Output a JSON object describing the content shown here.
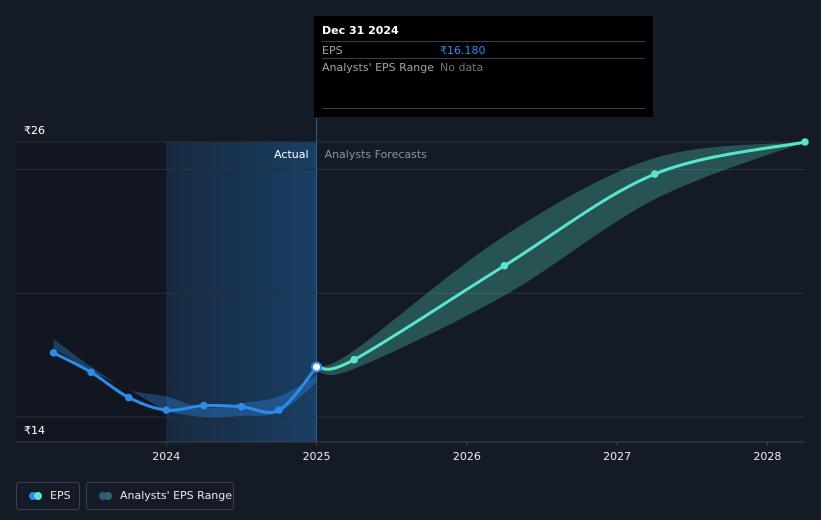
{
  "chart_data": {
    "type": "line",
    "currency_symbol": "₹",
    "y_ticks": [
      "₹26",
      "₹14"
    ],
    "ylim": [
      14,
      26
    ],
    "x_ticks": [
      "2024",
      "2025",
      "2026",
      "2027",
      "2028"
    ],
    "x_tick_values": [
      2024.0,
      2025.0,
      2026.0,
      2027.0,
      2028.0
    ],
    "xlim": [
      2023.0,
      2028.25
    ],
    "divider_x": 2025.0,
    "highlight_from": 2024.0,
    "region_labels": {
      "actual": "Actual",
      "forecast": "Analysts Forecasts"
    },
    "series": [
      {
        "name": "EPS",
        "color": "#2d8bea",
        "points": [
          {
            "x": 2023.25,
            "y": 16.8
          },
          {
            "x": 2023.5,
            "y": 15.95
          },
          {
            "x": 2023.75,
            "y": 14.85
          },
          {
            "x": 2024.0,
            "y": 14.3
          },
          {
            "x": 2024.25,
            "y": 14.5
          },
          {
            "x": 2024.5,
            "y": 14.45
          },
          {
            "x": 2024.75,
            "y": 14.3
          },
          {
            "x": 2025.0,
            "y": 16.18
          }
        ]
      },
      {
        "name": "EPS Forecast",
        "color": "#58e5cc",
        "points": [
          {
            "x": 2025.0,
            "y": 16.18
          },
          {
            "x": 2025.25,
            "y": 16.5
          },
          {
            "x": 2026.25,
            "y": 20.6
          },
          {
            "x": 2027.25,
            "y": 24.6
          },
          {
            "x": 2028.25,
            "y": 26.0
          }
        ]
      }
    ],
    "ranges": [
      {
        "name": "Analysts' EPS Range",
        "color": "#2d8bea",
        "points": [
          {
            "x": 2023.25,
            "low": 17.0,
            "high": 17.4
          },
          {
            "x": 2023.5,
            "low": 16.0,
            "high": 16.2
          },
          {
            "x": 2023.75,
            "low": 15.2,
            "high": 15.2
          },
          {
            "x": 2024.0,
            "low": 14.3,
            "high": 14.9
          },
          {
            "x": 2024.25,
            "low": 14.0,
            "high": 14.4
          },
          {
            "x": 2024.5,
            "low": 14.05,
            "high": 14.6
          },
          {
            "x": 2024.75,
            "low": 14.2,
            "high": 14.9
          },
          {
            "x": 2025.0,
            "low": 15.5,
            "high": 15.8
          }
        ]
      },
      {
        "name": "Analysts' EPS Range Forecast",
        "color": "#58e5cc",
        "points": [
          {
            "x": 2025.0,
            "low": 16.0,
            "high": 16.2
          },
          {
            "x": 2025.25,
            "low": 16.1,
            "high": 16.9
          },
          {
            "x": 2026.25,
            "low": 19.3,
            "high": 21.9
          },
          {
            "x": 2027.25,
            "low": 23.5,
            "high": 25.3
          },
          {
            "x": 2028.25,
            "low": 26.0,
            "high": 26.0
          }
        ]
      }
    ],
    "tooltip": {
      "date": "Dec 31 2024",
      "rows": [
        {
          "label": "EPS",
          "value": "₹16.180"
        },
        {
          "label": "Analysts' EPS Range",
          "value": "No data"
        }
      ]
    },
    "legend": [
      "EPS",
      "Analysts' EPS Range"
    ],
    "legend_position": "bottom-left",
    "grid": true
  }
}
